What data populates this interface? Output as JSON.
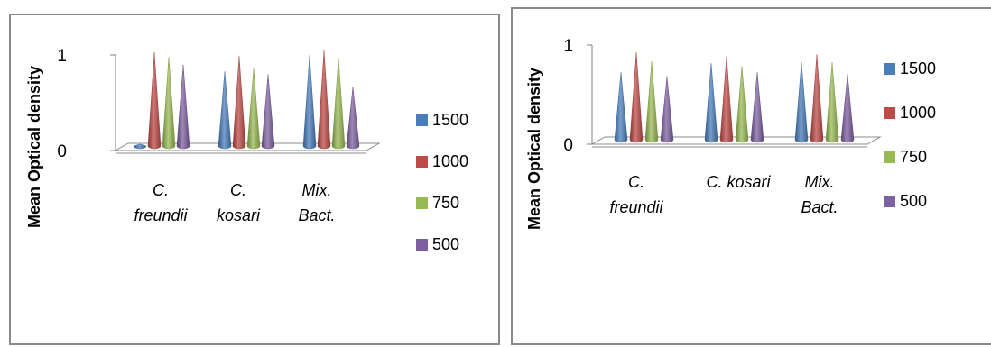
{
  "chart_data": [
    {
      "type": "bar",
      "bar_shape": "cone-3d",
      "ylabel": "Mean Optical density",
      "ylim": [
        0,
        1
      ],
      "yticks": [
        "0",
        "1"
      ],
      "categories": [
        [
          "C.",
          "freundii"
        ],
        [
          "C.",
          "kosari"
        ],
        [
          "Mix.",
          "Bact."
        ]
      ],
      "series": [
        {
          "name": "1500",
          "color": "#4a7ebb",
          "values": [
            0.02,
            0.78,
            0.95
          ]
        },
        {
          "name": "1000",
          "color": "#be4b48",
          "values": [
            0.98,
            0.94,
            1.0
          ]
        },
        {
          "name": "750",
          "color": "#98b954",
          "values": [
            0.93,
            0.81,
            0.92
          ]
        },
        {
          "name": "500",
          "color": "#7d60a0",
          "values": [
            0.85,
            0.75,
            0.62
          ]
        }
      ],
      "legend_position": "right",
      "grid": false
    },
    {
      "type": "bar",
      "bar_shape": "cone-3d",
      "ylabel": "Mean Optical density",
      "ylim": [
        0,
        1
      ],
      "yticks": [
        "0",
        "1"
      ],
      "categories": [
        [
          "C.",
          "freundii"
        ],
        [
          "C. kosari"
        ],
        [
          "Mix.",
          "Bact."
        ]
      ],
      "series": [
        {
          "name": "1500",
          "color": "#4a7ebb",
          "values": [
            0.68,
            0.77,
            0.78
          ]
        },
        {
          "name": "1000",
          "color": "#be4b48",
          "values": [
            0.88,
            0.84,
            0.86
          ]
        },
        {
          "name": "750",
          "color": "#98b954",
          "values": [
            0.79,
            0.74,
            0.78
          ]
        },
        {
          "name": "500",
          "color": "#7d60a0",
          "values": [
            0.64,
            0.68,
            0.66
          ]
        }
      ],
      "legend_position": "right",
      "grid": false
    }
  ]
}
